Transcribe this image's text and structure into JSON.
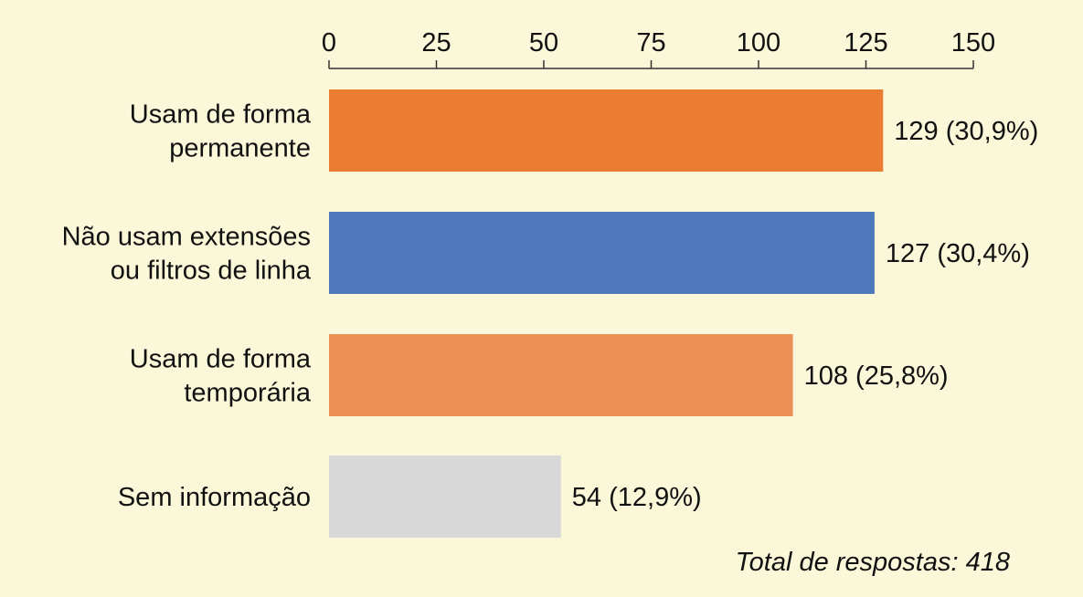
{
  "chart_data": {
    "type": "bar",
    "orientation": "horizontal",
    "categories": [
      [
        "Usam de forma",
        "permanente"
      ],
      [
        "Não usam extensões",
        "ou filtros de linha"
      ],
      [
        "Usam de forma",
        "temporária"
      ],
      [
        "Sem informação"
      ]
    ],
    "values": [
      129,
      127,
      108,
      54
    ],
    "data_labels": [
      "129 (30,9%)",
      "127 (30,4%)",
      "108 (25,8%)",
      "54 (12,9%)"
    ],
    "colors": [
      "#ea7d31",
      "#4e78be",
      "#ec9155",
      "#d8d8d8"
    ],
    "xlim": [
      0,
      150
    ],
    "x_ticks": [
      0,
      25,
      50,
      75,
      100,
      125,
      150
    ],
    "axis_position": "top",
    "grid": false,
    "note": "Total de respostas: 418"
  },
  "colors": {
    "background": "#fbf7d9",
    "axis": "#333333",
    "text": "#111111"
  }
}
